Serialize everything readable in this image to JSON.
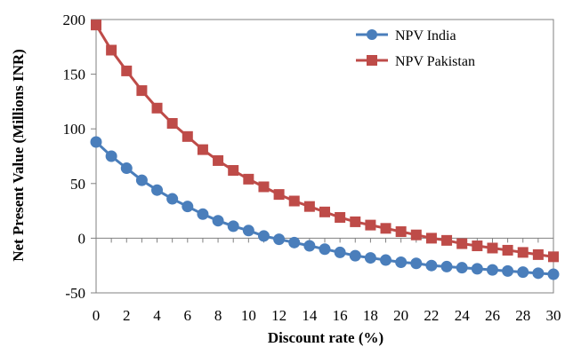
{
  "chart_data": {
    "type": "line",
    "xlabel": "Discount rate (%)",
    "ylabel": "Net Present Value (Millions INR)",
    "xlim": [
      0,
      30
    ],
    "ylim": [
      -50,
      200
    ],
    "x_ticks": [
      "0",
      "2",
      "4",
      "6",
      "8",
      "10",
      "12",
      "14",
      "16",
      "18",
      "20",
      "22",
      "24",
      "26",
      "28",
      "30"
    ],
    "y_ticks": [
      "-50",
      "0",
      "50",
      "100",
      "150",
      "200"
    ],
    "grid": false,
    "legend_position": "top-right",
    "x": [
      0,
      1,
      2,
      3,
      4,
      5,
      6,
      7,
      8,
      9,
      10,
      11,
      12,
      13,
      14,
      15,
      16,
      17,
      18,
      19,
      20,
      21,
      22,
      23,
      24,
      25,
      26,
      27,
      28,
      29,
      30
    ],
    "series": [
      {
        "name": "NPV India",
        "color": "#4a7ebb",
        "marker": "circle",
        "values": [
          88,
          75,
          64,
          53,
          44,
          36,
          29,
          22,
          16,
          11,
          7,
          2,
          -1,
          -4,
          -7,
          -10,
          -13,
          -16,
          -18,
          -20,
          -22,
          -23,
          -25,
          -26,
          -27,
          -28,
          -29,
          -30,
          -31,
          -32,
          -33
        ]
      },
      {
        "name": "NPV Pakistan",
        "color": "#be4b48",
        "marker": "square",
        "values": [
          195,
          172,
          153,
          135,
          119,
          105,
          93,
          81,
          71,
          62,
          54,
          47,
          40,
          34,
          29,
          24,
          19,
          15,
          12,
          9,
          6,
          3,
          0,
          -2,
          -5,
          -7,
          -9,
          -11,
          -13,
          -15,
          -17
        ]
      }
    ]
  }
}
